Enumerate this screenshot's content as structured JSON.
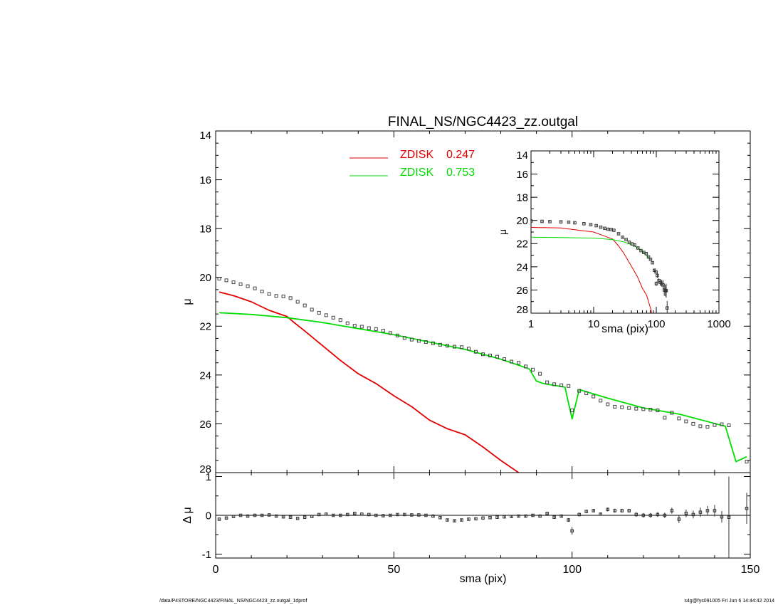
{
  "footer": {
    "left": "/data/P4STORE/NGC4423/FINAL_NS/NGC4423_zz.outgal_1dprof",
    "right": "s4g@fys091005  Fri Jun  6 14:44:42 2014"
  },
  "colors": {
    "red": "#e00000",
    "green": "#00dd00",
    "data": "#444444"
  },
  "chart_data": [
    {
      "type": "line",
      "title": "FINAL_NS/NGC4423_zz.outgal",
      "xlabel": "",
      "ylabel": "μ",
      "xlim": [
        0,
        150
      ],
      "ylim": [
        28,
        14
      ],
      "xticks": [
        0,
        50,
        100,
        150
      ],
      "yticks": [
        14,
        16,
        18,
        20,
        22,
        24,
        26,
        28
      ],
      "legend": [
        {
          "label": "ZDISK",
          "value": "0.247",
          "color": "#e00000"
        },
        {
          "label": "ZDISK",
          "value": "0.753",
          "color": "#00dd00"
        }
      ],
      "series": [
        {
          "name": "ZDISK 0.247",
          "color": "#e00000",
          "x": [
            1,
            5,
            10,
            15,
            20,
            22,
            25,
            30,
            35,
            40,
            45,
            50,
            55,
            60,
            65,
            70,
            75,
            80,
            85
          ],
          "y": [
            20.6,
            20.75,
            21.0,
            21.35,
            21.6,
            21.85,
            22.2,
            22.8,
            23.4,
            23.95,
            24.35,
            24.85,
            25.3,
            25.85,
            26.2,
            26.45,
            26.95,
            27.5,
            28.0
          ]
        },
        {
          "name": "ZDISK 0.753",
          "color": "#00dd00",
          "x": [
            1,
            10,
            20,
            30,
            40,
            50,
            60,
            70,
            80,
            85,
            88,
            90,
            92,
            98,
            100,
            102,
            110,
            120,
            130,
            143,
            146,
            149
          ],
          "y": [
            21.45,
            21.52,
            21.65,
            21.85,
            22.1,
            22.35,
            22.65,
            22.95,
            23.35,
            23.6,
            23.75,
            24.25,
            24.35,
            24.5,
            25.8,
            24.6,
            24.95,
            25.35,
            25.6,
            26.1,
            27.55,
            27.35
          ]
        },
        {
          "name": "data",
          "marker": "square",
          "x": [
            1,
            3,
            5,
            7,
            9,
            11,
            13,
            15,
            17,
            19,
            21,
            23,
            25,
            27,
            29,
            31,
            33,
            35,
            37,
            39,
            41,
            43,
            45,
            47,
            49,
            51,
            53,
            55,
            57,
            59,
            61,
            63,
            65,
            67,
            69,
            71,
            73,
            75,
            77,
            79,
            81,
            83,
            85,
            87,
            89,
            91,
            93,
            95,
            97,
            99,
            100,
            102,
            104,
            106,
            108,
            110,
            112,
            114,
            116,
            118,
            120,
            122,
            124,
            126,
            128,
            130,
            132,
            134,
            136,
            138,
            140,
            142,
            144,
            149
          ],
          "y": [
            20.05,
            20.12,
            20.2,
            20.28,
            20.36,
            20.45,
            20.58,
            20.68,
            20.76,
            20.78,
            20.85,
            21.0,
            21.15,
            21.32,
            21.45,
            21.55,
            21.65,
            21.75,
            21.88,
            21.98,
            22.02,
            22.08,
            22.12,
            22.18,
            22.28,
            22.38,
            22.48,
            22.55,
            22.6,
            22.65,
            22.7,
            22.76,
            22.8,
            22.84,
            22.86,
            22.92,
            23.05,
            23.15,
            23.2,
            23.25,
            23.35,
            23.45,
            23.5,
            23.65,
            23.78,
            23.95,
            24.3,
            24.38,
            24.42,
            24.45,
            25.45,
            24.65,
            24.75,
            24.88,
            25.05,
            25.2,
            25.3,
            25.32,
            25.35,
            25.38,
            25.4,
            25.42,
            25.45,
            25.75,
            25.55,
            25.78,
            25.9,
            26.0,
            26.1,
            26.12,
            26.05,
            26.02,
            26.06,
            27.55
          ]
        }
      ]
    },
    {
      "type": "scatter",
      "xlabel": "sma (pix)",
      "ylabel": "Δ μ",
      "xlim": [
        0,
        150
      ],
      "ylim": [
        -1.1,
        1.1
      ],
      "xticks": [
        0,
        50,
        100,
        150
      ],
      "yticks": [
        -1,
        0,
        1
      ],
      "reference_line": 0,
      "series": [
        {
          "name": "residual",
          "marker": "square",
          "x": [
            1,
            3,
            5,
            7,
            9,
            11,
            13,
            15,
            17,
            19,
            21,
            23,
            25,
            27,
            29,
            31,
            33,
            35,
            37,
            39,
            41,
            43,
            45,
            47,
            49,
            51,
            53,
            55,
            57,
            59,
            61,
            63,
            65,
            67,
            69,
            71,
            73,
            75,
            77,
            79,
            81,
            83,
            85,
            87,
            89,
            91,
            93,
            95,
            97,
            99,
            100,
            102,
            104,
            106,
            108,
            110,
            112,
            114,
            116,
            118,
            120,
            122,
            124,
            126,
            128,
            130,
            132,
            134,
            136,
            138,
            140,
            142,
            144,
            149
          ],
          "y": [
            -0.1,
            -0.07,
            -0.03,
            0.0,
            -0.02,
            0.0,
            0.0,
            0.01,
            -0.02,
            -0.04,
            -0.05,
            -0.08,
            -0.05,
            -0.03,
            0.02,
            0.03,
            0.0,
            0.0,
            0.02,
            0.05,
            0.03,
            0.02,
            0.0,
            -0.01,
            0.0,
            0.02,
            0.02,
            0.01,
            0.01,
            0.0,
            -0.02,
            -0.06,
            -0.12,
            -0.14,
            -0.12,
            -0.1,
            -0.09,
            -0.07,
            -0.06,
            -0.05,
            -0.04,
            -0.03,
            -0.02,
            -0.02,
            0.0,
            -0.02,
            0.05,
            -0.05,
            -0.02,
            -0.12,
            -0.4,
            0.02,
            0.1,
            0.12,
            0.03,
            0.15,
            0.12,
            0.12,
            0.12,
            0.02,
            0.0,
            0.0,
            0.02,
            0.0,
            0.12,
            -0.1,
            0.05,
            0.02,
            0.08,
            0.12,
            0.12,
            -0.04,
            -0.05,
            0.18
          ],
          "yerr": [
            0.02,
            0.02,
            0.02,
            0.02,
            0.02,
            0.02,
            0.02,
            0.02,
            0.02,
            0.02,
            0.02,
            0.02,
            0.02,
            0.02,
            0.02,
            0.02,
            0.02,
            0.02,
            0.02,
            0.02,
            0.02,
            0.02,
            0.02,
            0.02,
            0.02,
            0.02,
            0.02,
            0.02,
            0.02,
            0.02,
            0.02,
            0.02,
            0.02,
            0.02,
            0.02,
            0.02,
            0.02,
            0.02,
            0.02,
            0.02,
            0.02,
            0.02,
            0.02,
            0.03,
            0.03,
            0.03,
            0.03,
            0.03,
            0.03,
            0.05,
            0.1,
            0.05,
            0.04,
            0.04,
            0.04,
            0.05,
            0.05,
            0.05,
            0.05,
            0.06,
            0.06,
            0.06,
            0.06,
            0.07,
            0.08,
            0.1,
            0.1,
            0.1,
            0.12,
            0.12,
            0.15,
            0.15,
            1.05,
            0.4
          ]
        }
      ]
    },
    {
      "type": "line",
      "inset": true,
      "xlabel": "sma (pix)",
      "ylabel": "μ",
      "xscale": "log",
      "xlim": [
        1,
        1000
      ],
      "ylim": [
        28,
        14
      ],
      "xticks": [
        1,
        10,
        100,
        1000
      ],
      "yticks": [
        14,
        16,
        18,
        20,
        22,
        24,
        26,
        28
      ],
      "series": [
        {
          "name": "ZDISK 0.247",
          "color": "#e00000",
          "x": [
            1,
            3,
            5,
            10,
            15,
            20,
            25,
            30,
            40,
            50,
            60,
            70,
            80,
            85
          ],
          "y": [
            20.6,
            20.65,
            20.8,
            21.0,
            21.35,
            21.6,
            22.2,
            22.8,
            23.95,
            24.85,
            25.85,
            26.45,
            27.5,
            28.0
          ]
        },
        {
          "name": "ZDISK 0.753",
          "color": "#00dd00",
          "x": [
            1,
            3,
            5,
            10,
            20,
            30,
            40,
            50,
            60,
            80
          ],
          "y": [
            21.45,
            21.47,
            21.5,
            21.52,
            21.65,
            21.85,
            22.1,
            22.35,
            22.65,
            23.35
          ]
        },
        {
          "name": "data",
          "marker": "square",
          "x": [
            1,
            1.5,
            2,
            3,
            4,
            5,
            7,
            9,
            11,
            13,
            15,
            17,
            19,
            21,
            25,
            29,
            33,
            37,
            41,
            45,
            51,
            57,
            63,
            69,
            75,
            81,
            87,
            93,
            99,
            100,
            104,
            110,
            116,
            122,
            128,
            134,
            140,
            144,
            149
          ],
          "y": [
            20.05,
            20.08,
            20.1,
            20.12,
            20.15,
            20.2,
            20.28,
            20.36,
            20.45,
            20.58,
            20.68,
            20.76,
            20.78,
            20.85,
            21.15,
            21.45,
            21.65,
            21.88,
            22.02,
            22.12,
            22.38,
            22.6,
            22.76,
            22.86,
            23.15,
            23.35,
            23.65,
            24.3,
            24.45,
            25.45,
            24.75,
            25.2,
            25.35,
            25.42,
            25.55,
            26.0,
            26.05,
            26.06,
            27.55
          ],
          "yerr": [
            0.05,
            0.05,
            0.05,
            0.05,
            0.05,
            0.05,
            0.05,
            0.05,
            0.05,
            0.05,
            0.05,
            0.05,
            0.05,
            0.05,
            0.05,
            0.05,
            0.05,
            0.05,
            0.05,
            0.05,
            0.05,
            0.05,
            0.05,
            0.05,
            0.05,
            0.05,
            0.05,
            0.1,
            0.1,
            0.2,
            0.2,
            0.2,
            0.3,
            0.3,
            0.4,
            0.5,
            0.5,
            0.6,
            0.6
          ]
        }
      ]
    }
  ]
}
